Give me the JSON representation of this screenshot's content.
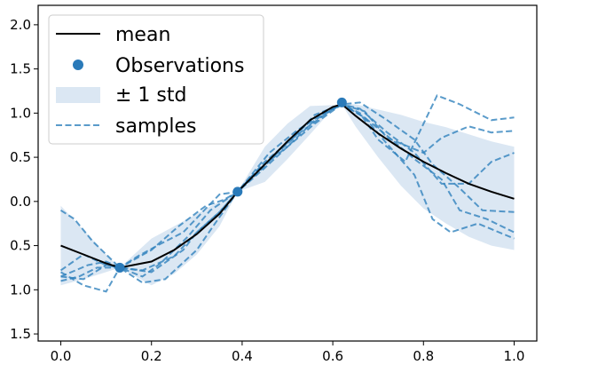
{
  "chart_data": {
    "type": "line",
    "title": "",
    "xlabel": "",
    "ylabel": "",
    "xlim": [
      -0.05,
      1.05
    ],
    "ylim": [
      -1.58,
      2.22
    ],
    "xticks": [
      0.0,
      0.2,
      0.4,
      0.6,
      0.8,
      1.0
    ],
    "xtick_labels": [
      "0.0",
      "0.2",
      "0.4",
      "0.6",
      "0.8",
      "1.0"
    ],
    "yticks": [
      2.0,
      1.5,
      1.0,
      0.5,
      0.0,
      -0.5,
      -1.0,
      -1.5
    ],
    "ytick_labels": [
      "2.0",
      "1.5",
      "1.0",
      "0.5",
      "0.0",
      "0.5",
      "1.0",
      "1.5"
    ],
    "legend": {
      "position": "upper left",
      "entries": [
        "mean",
        "Observations",
        "± 1 std",
        "samples"
      ]
    },
    "colors": {
      "mean": "#000000",
      "observations": "#2a7ab9",
      "band": "#dbe7f3",
      "samples": "#3182bd"
    },
    "mean": {
      "name": "mean",
      "x": [
        0.0,
        0.05,
        0.1,
        0.13,
        0.2,
        0.25,
        0.3,
        0.35,
        0.39,
        0.45,
        0.5,
        0.55,
        0.6,
        0.62,
        0.65,
        0.7,
        0.75,
        0.8,
        0.85,
        0.9,
        0.95,
        1.0
      ],
      "y": [
        -0.5,
        -0.6,
        -0.7,
        -0.75,
        -0.68,
        -0.55,
        -0.37,
        -0.14,
        0.11,
        0.42,
        0.68,
        0.92,
        1.07,
        1.1,
        0.97,
        0.77,
        0.6,
        0.45,
        0.32,
        0.2,
        0.11,
        0.03
      ]
    },
    "band": {
      "name": "± 1 std",
      "x": [
        0.0,
        0.05,
        0.1,
        0.13,
        0.2,
        0.25,
        0.3,
        0.35,
        0.39,
        0.45,
        0.5,
        0.55,
        0.6,
        0.62,
        0.65,
        0.7,
        0.75,
        0.8,
        0.85,
        0.9,
        0.95,
        1.0
      ],
      "lower": [
        -0.95,
        -0.88,
        -0.8,
        -0.75,
        -0.95,
        -0.82,
        -0.6,
        -0.28,
        0.11,
        0.22,
        0.48,
        0.76,
        1.05,
        1.1,
        0.85,
        0.5,
        0.18,
        -0.08,
        -0.25,
        -0.4,
        -0.5,
        -0.55
      ],
      "upper": [
        -0.05,
        -0.32,
        -0.6,
        -0.75,
        -0.42,
        -0.28,
        -0.14,
        0.0,
        0.11,
        0.62,
        0.88,
        1.08,
        1.09,
        1.1,
        1.1,
        1.04,
        0.98,
        0.9,
        0.84,
        0.76,
        0.68,
        0.62
      ]
    },
    "observations": {
      "name": "Observations",
      "x": [
        0.13,
        0.39,
        0.62
      ],
      "y": [
        -0.75,
        0.11,
        1.12
      ]
    },
    "samples": [
      {
        "x": [
          0.0,
          0.03,
          0.07,
          0.13,
          0.2,
          0.27,
          0.3,
          0.35,
          0.39,
          0.45,
          0.52,
          0.6,
          0.62,
          0.67,
          0.72,
          0.8,
          0.84,
          0.9,
          0.95,
          1.0
        ],
        "y": [
          -0.1,
          -0.2,
          -0.45,
          -0.75,
          -0.8,
          -0.55,
          -0.35,
          -0.12,
          0.11,
          0.45,
          0.75,
          1.05,
          1.1,
          1.02,
          0.72,
          0.55,
          0.72,
          0.85,
          0.78,
          0.8
        ]
      },
      {
        "x": [
          0.0,
          0.04,
          0.08,
          0.13,
          0.18,
          0.22,
          0.28,
          0.33,
          0.39,
          0.44,
          0.5,
          0.56,
          0.62,
          0.66,
          0.72,
          0.78,
          0.82,
          0.88,
          0.93,
          1.0
        ],
        "y": [
          -0.9,
          -0.85,
          -0.75,
          -0.75,
          -0.85,
          -0.7,
          -0.4,
          -0.1,
          0.11,
          0.38,
          0.62,
          0.88,
          1.1,
          1.12,
          0.92,
          0.7,
          0.42,
          0.15,
          -0.1,
          -0.12
        ]
      },
      {
        "x": [
          0.0,
          0.05,
          0.1,
          0.13,
          0.2,
          0.26,
          0.32,
          0.36,
          0.39,
          0.45,
          0.5,
          0.56,
          0.62,
          0.67,
          0.73,
          0.78,
          0.84,
          0.88,
          0.94,
          1.0
        ],
        "y": [
          -0.8,
          -0.95,
          -1.02,
          -0.75,
          -0.55,
          -0.28,
          -0.05,
          0.02,
          0.11,
          0.38,
          0.62,
          0.92,
          1.1,
          0.95,
          0.7,
          0.48,
          0.25,
          -0.1,
          -0.2,
          -0.35
        ]
      },
      {
        "x": [
          0.0,
          0.06,
          0.1,
          0.13,
          0.18,
          0.25,
          0.3,
          0.35,
          0.39,
          0.45,
          0.5,
          0.56,
          0.62,
          0.66,
          0.7,
          0.76,
          0.83,
          0.88,
          0.95,
          1.0
        ],
        "y": [
          -0.85,
          -0.72,
          -0.68,
          -0.75,
          -0.78,
          -0.62,
          -0.35,
          -0.12,
          0.11,
          0.4,
          0.68,
          0.95,
          1.1,
          1.0,
          0.7,
          0.45,
          1.2,
          1.1,
          0.92,
          0.95
        ]
      },
      {
        "x": [
          0.0,
          0.05,
          0.1,
          0.13,
          0.18,
          0.23,
          0.3,
          0.34,
          0.39,
          0.45,
          0.51,
          0.56,
          0.62,
          0.67,
          0.72,
          0.78,
          0.82,
          0.86,
          0.92,
          1.0
        ],
        "y": [
          -0.85,
          -0.88,
          -0.72,
          -0.75,
          -0.92,
          -0.88,
          -0.55,
          -0.25,
          0.11,
          0.42,
          0.7,
          0.98,
          1.1,
          0.95,
          0.65,
          0.3,
          -0.2,
          -0.35,
          -0.25,
          -0.42
        ]
      },
      {
        "x": [
          0.0,
          0.05,
          0.1,
          0.13,
          0.17,
          0.22,
          0.27,
          0.32,
          0.35,
          0.39,
          0.46,
          0.52,
          0.58,
          0.62,
          0.66,
          0.72,
          0.78,
          0.84,
          0.9,
          0.95,
          1.0
        ],
        "y": [
          -0.78,
          -0.6,
          -0.72,
          -0.75,
          -0.62,
          -0.48,
          -0.35,
          -0.08,
          0.08,
          0.11,
          0.55,
          0.8,
          1.0,
          1.1,
          1.05,
          0.78,
          0.55,
          0.2,
          0.2,
          0.45,
          0.55
        ]
      }
    ]
  }
}
